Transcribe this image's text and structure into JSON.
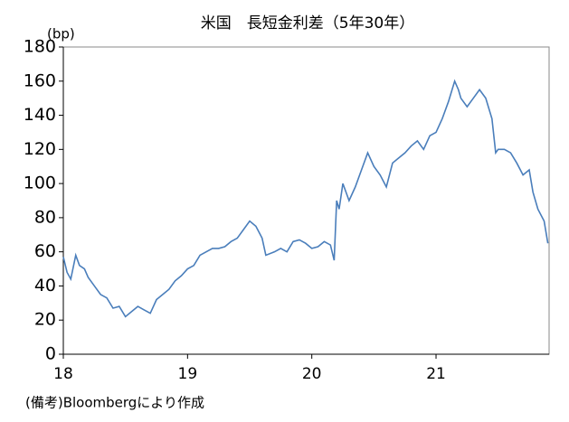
{
  "chart_data": {
    "type": "line",
    "title": "米国　長短金利差（5年30年）",
    "y_label": "(bp)",
    "note": "(備考)Bloombergにより作成",
    "x": [
      18.0,
      18.03,
      18.06,
      18.1,
      18.13,
      18.17,
      18.2,
      18.25,
      18.3,
      18.35,
      18.4,
      18.45,
      18.5,
      18.55,
      18.6,
      18.65,
      18.7,
      18.75,
      18.8,
      18.85,
      18.9,
      18.95,
      19.0,
      19.05,
      19.1,
      19.15,
      19.2,
      19.25,
      19.3,
      19.35,
      19.4,
      19.45,
      19.5,
      19.55,
      19.6,
      19.63,
      19.7,
      19.75,
      19.8,
      19.85,
      19.9,
      19.95,
      20.0,
      20.05,
      20.1,
      20.15,
      20.18,
      20.2,
      20.22,
      20.25,
      20.3,
      20.35,
      20.4,
      20.45,
      20.5,
      20.55,
      20.6,
      20.65,
      20.7,
      20.75,
      20.8,
      20.85,
      20.9,
      20.95,
      21.0,
      21.05,
      21.1,
      21.15,
      21.18,
      21.2,
      21.25,
      21.3,
      21.35,
      21.4,
      21.45,
      21.48,
      21.5,
      21.55,
      21.6,
      21.65,
      21.7,
      21.75,
      21.78,
      21.82,
      21.87,
      21.9
    ],
    "series": [
      {
        "name": "長短金利差",
        "color": "#4a7ebb",
        "values": [
          57,
          48,
          44,
          58,
          52,
          50,
          45,
          40,
          35,
          33,
          27,
          28,
          22,
          25,
          28,
          26,
          24,
          32,
          35,
          38,
          43,
          46,
          50,
          52,
          58,
          60,
          62,
          62,
          63,
          66,
          68,
          73,
          78,
          75,
          68,
          58,
          60,
          62,
          60,
          66,
          67,
          65,
          62,
          63,
          66,
          64,
          55,
          90,
          85,
          100,
          90,
          98,
          108,
          118,
          110,
          105,
          98,
          112,
          115,
          118,
          122,
          125,
          120,
          128,
          130,
          138,
          148,
          160,
          155,
          150,
          145,
          150,
          155,
          150,
          138,
          118,
          120,
          120,
          118,
          112,
          105,
          108,
          95,
          85,
          78,
          65
        ]
      }
    ],
    "xlim": [
      18,
      21.91
    ],
    "xticks": [
      18,
      19,
      20,
      21
    ],
    "ylim": [
      0,
      180
    ],
    "yticks": [
      0,
      20,
      40,
      60,
      80,
      100,
      120,
      140,
      160,
      180
    ]
  }
}
